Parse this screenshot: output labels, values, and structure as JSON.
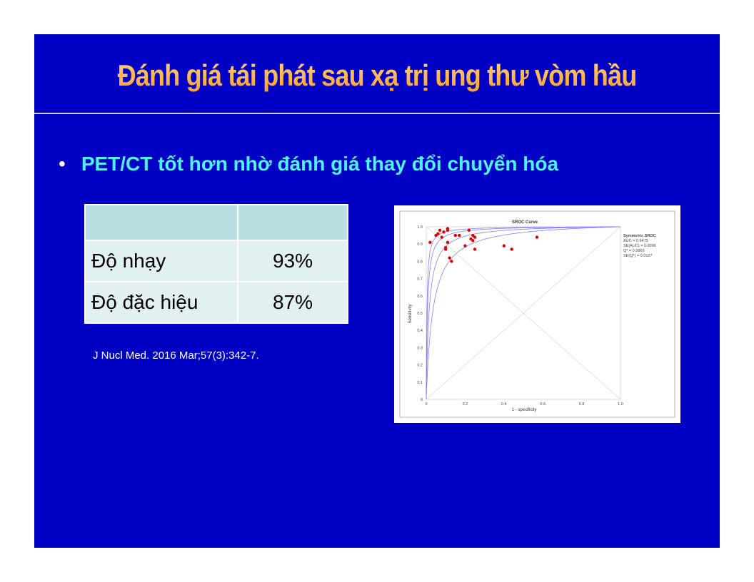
{
  "slide": {
    "title": "Đánh giá tái phát sau xạ trị ung thư vòm hầu",
    "bullet_char": "•",
    "bullet_text": "PET/CT tốt hơn nhờ đánh giá thay đổi chuyển hóa",
    "citation": "J Nucl Med. 2016 Mar;57(3):342-7."
  },
  "table": {
    "header": [
      "",
      ""
    ],
    "rows": [
      {
        "label": "Độ nhạy",
        "value": "93%"
      },
      {
        "label": "Độ đặc hiệu",
        "value": "87%"
      }
    ]
  },
  "colors": {
    "background": "#0000c4",
    "title": "#ff9f2a",
    "bullet_text": "#4ef2f2",
    "curve": "#8080ff",
    "points": "#e00000"
  },
  "chart_data": {
    "type": "scatter",
    "title": "SROC Curve",
    "xlabel": "1 - specificity",
    "ylabel": "Sensitivity",
    "xlim": [
      0,
      1.0
    ],
    "ylim": [
      0,
      1.0
    ],
    "xticks": [
      "0",
      "0.2",
      "0.4",
      "0.6",
      "0.8",
      "1.0"
    ],
    "yticks": [
      "0",
      "0.1",
      "0.2",
      "0.3",
      "0.4",
      "0.5",
      "0.6",
      "0.7",
      "0.8",
      "0.9",
      "1.0"
    ],
    "grid": false,
    "diagonals": true,
    "legend_lines": [
      "Symmetric SROC",
      "AUC = 0.9473",
      "SE(AUC) = 0.0096",
      "Q* = 0.8869",
      "SE(Q*) = 0.0127"
    ],
    "curves": [
      {
        "dor": 300
      },
      {
        "dor": 160
      },
      {
        "dor": 70
      },
      {
        "dor": 30
      }
    ],
    "series": [
      {
        "x": [
          0.02,
          0.05,
          0.06,
          0.07,
          0.08,
          0.09,
          0.1,
          0.1,
          0.11,
          0.11,
          0.12,
          0.13,
          0.15,
          0.17,
          0.2,
          0.22,
          0.23,
          0.24,
          0.24,
          0.25,
          0.25,
          0.4,
          0.44,
          0.57,
          0.11
        ],
        "y": [
          0.91,
          0.95,
          0.96,
          0.98,
          0.94,
          0.97,
          0.87,
          0.88,
          0.99,
          0.98,
          0.82,
          0.8,
          0.95,
          0.95,
          0.89,
          0.98,
          0.93,
          0.92,
          0.95,
          0.94,
          0.87,
          0.89,
          0.87,
          0.94,
          0.91
        ]
      }
    ]
  }
}
